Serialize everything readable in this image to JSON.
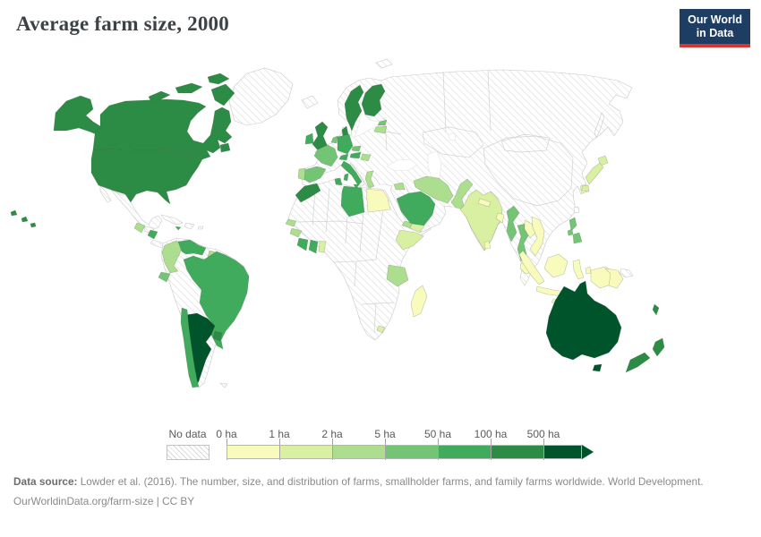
{
  "header": {
    "title": "Average farm size, 2000"
  },
  "logo": {
    "line1": "Our World",
    "line2": "in Data",
    "bg": "#1d3d63",
    "accent": "#d8352e"
  },
  "legend": {
    "no_data_label": "No data",
    "ticks": [
      "0 ha",
      "1 ha",
      "2 ha",
      "5 ha",
      "50 ha",
      "100 ha",
      "500 ha"
    ]
  },
  "footer": {
    "source_label": "Data source:",
    "source_text": " Lowder et al. (2016). The number, size, and distribution of farms, smallholder farms, and family farms worldwide. World Development.",
    "citation": "OurWorldinData.org/farm-size | CC BY"
  },
  "chart_data": {
    "type": "choropleth",
    "title": "Average farm size, 2000",
    "year": "2000",
    "unit": "hectares (ha)",
    "legend_position": "bottom",
    "buckets": [
      {
        "range": "0-1",
        "tick": "0 ha",
        "color": "#f8fbbc"
      },
      {
        "range": "1-2",
        "tick": "1 ha",
        "color": "#d9f0a3"
      },
      {
        "range": "2-5",
        "tick": "2 ha",
        "color": "#addd8e"
      },
      {
        "range": "5-50",
        "tick": "5 ha",
        "color": "#74c476"
      },
      {
        "range": "50-100",
        "tick": "50 ha",
        "color": "#41ab5d"
      },
      {
        "range": "100-500",
        "tick": "100 ha",
        "color": "#2c8b45"
      },
      {
        "range": "500+",
        "tick": "500 ha",
        "color": "#00542b"
      }
    ],
    "countries": {
      "canada": {
        "name": "Canada",
        "bucket": "100-500"
      },
      "usa": {
        "name": "United States",
        "bucket": "100-500"
      },
      "guatemala": {
        "name": "Guatemala",
        "bucket": "2-5"
      },
      "nicaragua": {
        "name": "Nicaragua",
        "bucket": "50-100"
      },
      "jamaica": {
        "name": "Jamaica",
        "bucket": "50-100"
      },
      "colombia": {
        "name": "Colombia",
        "bucket": "2-5"
      },
      "suriname": {
        "name": "Suriname",
        "bucket": "2-5"
      },
      "venezuela": {
        "name": "Venezuela",
        "bucket": "50-100"
      },
      "ecuador": {
        "name": "Ecuador",
        "bucket": "5-50"
      },
      "brazil": {
        "name": "Brazil",
        "bucket": "50-100"
      },
      "chile": {
        "name": "Chile",
        "bucket": "50-100"
      },
      "argentina": {
        "name": "Argentina",
        "bucket": "500+"
      },
      "uruguay": {
        "name": "Uruguay",
        "bucket": "100-500"
      },
      "uk": {
        "name": "United Kingdom",
        "bucket": "100-500"
      },
      "ireland": {
        "name": "Ireland",
        "bucket": "50-100"
      },
      "france": {
        "name": "France",
        "bucket": "5-50"
      },
      "spain": {
        "name": "Spain",
        "bucket": "5-50"
      },
      "portugal": {
        "name": "Portugal",
        "bucket": "2-5"
      },
      "netherlands": {
        "name": "Netherlands",
        "bucket": "5-50"
      },
      "germany": {
        "name": "Germany",
        "bucket": "50-100"
      },
      "denmark": {
        "name": "Denmark",
        "bucket": "100-500"
      },
      "sweden": {
        "name": "Sweden",
        "bucket": "100-500"
      },
      "finland": {
        "name": "Finland",
        "bucket": "100-500"
      },
      "estonia": {
        "name": "Estonia",
        "bucket": "5-50"
      },
      "baltics": {
        "name": "Latvia/Lithuania",
        "bucket": "2-5"
      },
      "czechia": {
        "name": "Czechia",
        "bucket": "5-50"
      },
      "austria": {
        "name": "Austria",
        "bucket": "50-100"
      },
      "switzerland": {
        "name": "Switzerland",
        "bucket": "50-100"
      },
      "hungary": {
        "name": "Hungary",
        "bucket": "2-5"
      },
      "italy": {
        "name": "Italy",
        "bucket": "50-100"
      },
      "greece": {
        "name": "Greece",
        "bucket": "2-5"
      },
      "morocco": {
        "name": "Morocco",
        "bucket": "100-500"
      },
      "tunisia": {
        "name": "Tunisia",
        "bucket": "50-100"
      },
      "libya": {
        "name": "Libya",
        "bucket": "50-100"
      },
      "egypt": {
        "name": "Egypt",
        "bucket": "0-1"
      },
      "senegal": {
        "name": "Senegal",
        "bucket": "2-5"
      },
      "guinea": {
        "name": "Guinea",
        "bucket": "2-5"
      },
      "cote-divoire": {
        "name": "Côte d'Ivoire",
        "bucket": "50-100"
      },
      "ghana": {
        "name": "Ghana",
        "bucket": "50-100"
      },
      "togo-benin": {
        "name": "Togo/Benin",
        "bucket": "1-2"
      },
      "eritrea": {
        "name": "Eritrea",
        "bucket": "2-5"
      },
      "ethiopia": {
        "name": "Ethiopia",
        "bucket": "1-2"
      },
      "tanzania": {
        "name": "Tanzania",
        "bucket": "2-5"
      },
      "madagascar": {
        "name": "Madagascar",
        "bucket": "0-1"
      },
      "lesotho": {
        "name": "Lesotho",
        "bucket": "1-2"
      },
      "syria": {
        "name": "Syria",
        "bucket": "2-5"
      },
      "saudi-arabia": {
        "name": "Saudi Arabia",
        "bucket": "50-100"
      },
      "yemen": {
        "name": "Yemen",
        "bucket": "1-2"
      },
      "iran": {
        "name": "Iran",
        "bucket": "2-5"
      },
      "pakistan": {
        "name": "Pakistan",
        "bucket": "2-5"
      },
      "india": {
        "name": "India",
        "bucket": "1-2"
      },
      "nepal": {
        "name": "Nepal",
        "bucket": "0-1"
      },
      "bangladesh": {
        "name": "Bangladesh",
        "bucket": "0-1"
      },
      "sri-lanka": {
        "name": "Sri Lanka",
        "bucket": "0-1"
      },
      "myanmar": {
        "name": "Myanmar",
        "bucket": "5-50"
      },
      "thailand": {
        "name": "Thailand",
        "bucket": "5-50"
      },
      "laos": {
        "name": "Laos",
        "bucket": "0-1"
      },
      "vietnam": {
        "name": "Vietnam",
        "bucket": "0-1"
      },
      "malaysia": {
        "name": "Malaysia",
        "bucket": "0-1"
      },
      "indonesia": {
        "name": "Indonesia",
        "bucket": "0-1"
      },
      "png": {
        "name": "Papua New Guinea",
        "bucket": "0-1"
      },
      "philippines": {
        "name": "Philippines",
        "bucket": "5-50"
      },
      "japan": {
        "name": "Japan",
        "bucket": "1-2"
      },
      "south-korea": {
        "name": "South Korea",
        "bucket": "0-1"
      },
      "australia": {
        "name": "Australia",
        "bucket": "500+"
      },
      "new-zealand": {
        "name": "New Zealand",
        "bucket": "100-500"
      },
      "new-caledonia": {
        "name": "New Caledonia",
        "bucket": "100-500"
      }
    },
    "no_data": [
      "Greenland",
      "Iceland",
      "Norway",
      "Russia",
      "Mexico",
      "Cuba",
      "Haiti",
      "Dominican Republic",
      "Honduras",
      "Costa Rica",
      "Panama",
      "Peru",
      "Bolivia",
      "Paraguay",
      "Guyana",
      "Poland",
      "Ukraine",
      "Belarus",
      "Balkans",
      "Turkey",
      "Kazakhstan",
      "Central Asia",
      "Afghanistan",
      "Iraq",
      "Oman",
      "China",
      "Mongolia",
      "North Korea",
      "Cambodia",
      "most of Africa"
    ]
  }
}
